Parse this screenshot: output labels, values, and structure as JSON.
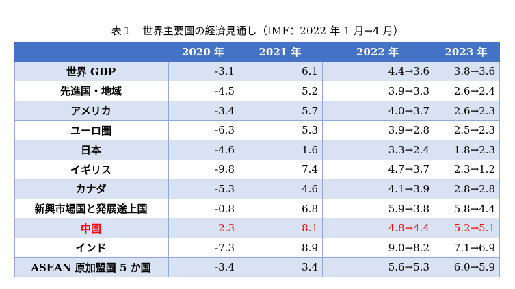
{
  "caption": "表１　世界主要国の経済見通し（IMF：2022 年 1 月→4 月）",
  "table": {
    "headers": [
      "",
      "2020 年",
      "2021 年",
      "2022 年",
      "2023 年"
    ],
    "rows": [
      {
        "name": "世界 GDP",
        "y2020": "-3.1",
        "y2021": "6.1",
        "y2022": "4.4→3.6",
        "y2023": "3.8→3.6"
      },
      {
        "name": "先進国・地域",
        "y2020": "-4.5",
        "y2021": "5.2",
        "y2022": "3.9→3.3",
        "y2023": "2.6→2.4"
      },
      {
        "name": "アメリカ",
        "y2020": "-3.4",
        "y2021": "5.7",
        "y2022": "4.0→3.7",
        "y2023": "2.6→2.3"
      },
      {
        "name": "ユーロ圏",
        "y2020": "-6.3",
        "y2021": "5.3",
        "y2022": "3.9→2.8",
        "y2023": "2.5→2.3"
      },
      {
        "name": "日本",
        "y2020": "-4.6",
        "y2021": "1.6",
        "y2022": "3.3→2.4",
        "y2023": "1.8→2.3"
      },
      {
        "name": "イギリス",
        "y2020": "-9.8",
        "y2021": "7.4",
        "y2022": "4.7→3.7",
        "y2023": "2.3→1.2"
      },
      {
        "name": "カナダ",
        "y2020": "-5.3",
        "y2021": "4.6",
        "y2022": "4.1→3.9",
        "y2023": "2.8→2.8"
      },
      {
        "name": "新興市場国と発展途上国",
        "y2020": "-0.8",
        "y2021": "6.8",
        "y2022": "5.9→3.8",
        "y2023": "5.8→4.4"
      },
      {
        "name": "中国",
        "y2020": "2.3",
        "y2021": "8.1",
        "y2022": "4.8→4.4",
        "y2023": "5.2→5.1"
      },
      {
        "name": "インド",
        "y2020": "-7.3",
        "y2021": "8.9",
        "y2022": "9.0→8.2",
        "y2023": "7.1→6.9"
      },
      {
        "name": "ASEAN 原加盟国 5 か国",
        "y2020": "-3.4",
        "y2021": "3.4",
        "y2022": "5.6→5.3",
        "y2023": "6.0→5.9"
      }
    ]
  },
  "colors": {
    "header_bg": "#4472c4",
    "band_bg": "#d9e2f3",
    "border": "#8eaadb",
    "highlight_text": "#ff0000"
  }
}
